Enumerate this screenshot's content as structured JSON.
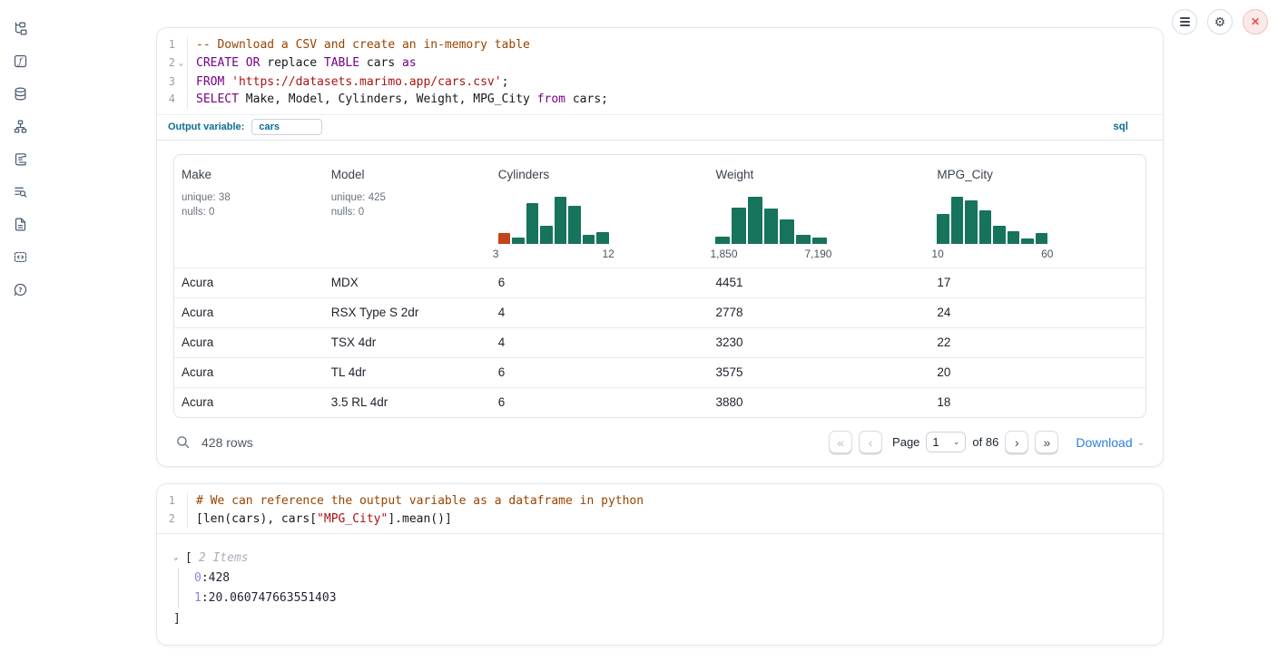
{
  "topbar": {
    "menu_button": "notebook-menu",
    "settings_button": "settings",
    "close_button": "shutdown"
  },
  "icons": {
    "first_page": "«",
    "prev_page": "‹",
    "next_page": "›",
    "last_page": "»",
    "collapse": "⌄",
    "dropdown": "⌄",
    "fold": "⌄"
  },
  "colors": {
    "histogram_teal": "#16735c",
    "histogram_orange": "#c2431c",
    "accent_blue": "#2e7de1",
    "sql_label_blue": "#0c6e94"
  },
  "sql_cell": {
    "language_badge": "sql",
    "output_variable": {
      "label": "Output variable:",
      "value": "cars"
    },
    "code": [
      {
        "num": "1",
        "tokens": [
          [
            "com",
            "-- Download a CSV and create an in-memory table"
          ]
        ]
      },
      {
        "num": "2",
        "fold": true,
        "tokens": [
          [
            "kw",
            "CREATE OR"
          ],
          [
            "pl",
            " replace "
          ],
          [
            "kw",
            "TABLE"
          ],
          [
            "pl",
            " cars "
          ],
          [
            "kw",
            "as"
          ]
        ]
      },
      {
        "num": "3",
        "tokens": [
          [
            "kw",
            "FROM"
          ],
          [
            "pl",
            " "
          ],
          [
            "str",
            "'https://datasets.marimo.app/cars.csv'"
          ],
          [
            "pl",
            ";"
          ]
        ]
      },
      {
        "num": "4",
        "tokens": [
          [
            "kw",
            "SELECT"
          ],
          [
            "pl",
            " Make, Model, Cylinders, Weight, MPG_City "
          ],
          [
            "kw",
            "from"
          ],
          [
            "pl",
            " cars;"
          ]
        ]
      }
    ]
  },
  "table": {
    "columns": [
      {
        "label": "Make",
        "stats": [
          "unique: 38",
          "nulls: 0"
        ]
      },
      {
        "label": "Model",
        "stats": [
          "unique: 425",
          "nulls: 0"
        ]
      },
      {
        "label": "Cylinders",
        "histogram": {
          "range": [
            "3",
            "12"
          ],
          "bars": [
            {
              "h": 0.22,
              "c": "#c2431c"
            },
            {
              "h": 0.13
            },
            {
              "h": 0.87
            },
            {
              "h": 0.38
            },
            {
              "h": 1
            },
            {
              "h": 0.8
            },
            {
              "h": 0.18
            },
            {
              "h": 0.25
            }
          ]
        }
      },
      {
        "label": "Weight",
        "histogram": {
          "range": [
            "1,850",
            "7,190"
          ],
          "bars": [
            {
              "h": 0.15
            },
            {
              "h": 0.77
            },
            {
              "h": 1
            },
            {
              "h": 0.74
            },
            {
              "h": 0.52
            },
            {
              "h": 0.19
            },
            {
              "h": 0.13
            }
          ]
        }
      },
      {
        "label": "MPG_City",
        "histogram": {
          "range": [
            "10",
            "60"
          ],
          "bars": [
            {
              "h": 0.63
            },
            {
              "h": 1
            },
            {
              "h": 0.92
            },
            {
              "h": 0.7
            },
            {
              "h": 0.38
            },
            {
              "h": 0.27
            },
            {
              "h": 0.12
            },
            {
              "h": 0.22
            }
          ]
        }
      }
    ],
    "rows": [
      [
        "Acura",
        "MDX",
        "6",
        "4451",
        "17"
      ],
      [
        "Acura",
        "RSX Type S 2dr",
        "4",
        "2778",
        "24"
      ],
      [
        "Acura",
        "TSX 4dr",
        "4",
        "3230",
        "22"
      ],
      [
        "Acura",
        "TL 4dr",
        "6",
        "3575",
        "20"
      ],
      [
        "Acura",
        "3.5 RL 4dr",
        "6",
        "3880",
        "18"
      ]
    ],
    "footer": {
      "row_count": "428 rows",
      "page_label": "Page",
      "page_value": "1",
      "total_label": "of 86",
      "download_label": "Download"
    }
  },
  "python_cell": {
    "code": [
      {
        "num": "1",
        "tokens": [
          [
            "com",
            "# We can reference the output variable as a dataframe in python"
          ]
        ]
      },
      {
        "num": "2",
        "tokens": [
          [
            "pl",
            "[len(cars), cars["
          ],
          [
            "str",
            "\"MPG_City\""
          ],
          [
            "pl",
            "].mean()]"
          ]
        ]
      }
    ],
    "output": {
      "open_bracket": "[",
      "items_label": "2 Items",
      "entries": [
        {
          "index": "0",
          "value": "428"
        },
        {
          "index": "1",
          "value": "20.060747663551403"
        }
      ],
      "close_bracket": "]"
    }
  }
}
